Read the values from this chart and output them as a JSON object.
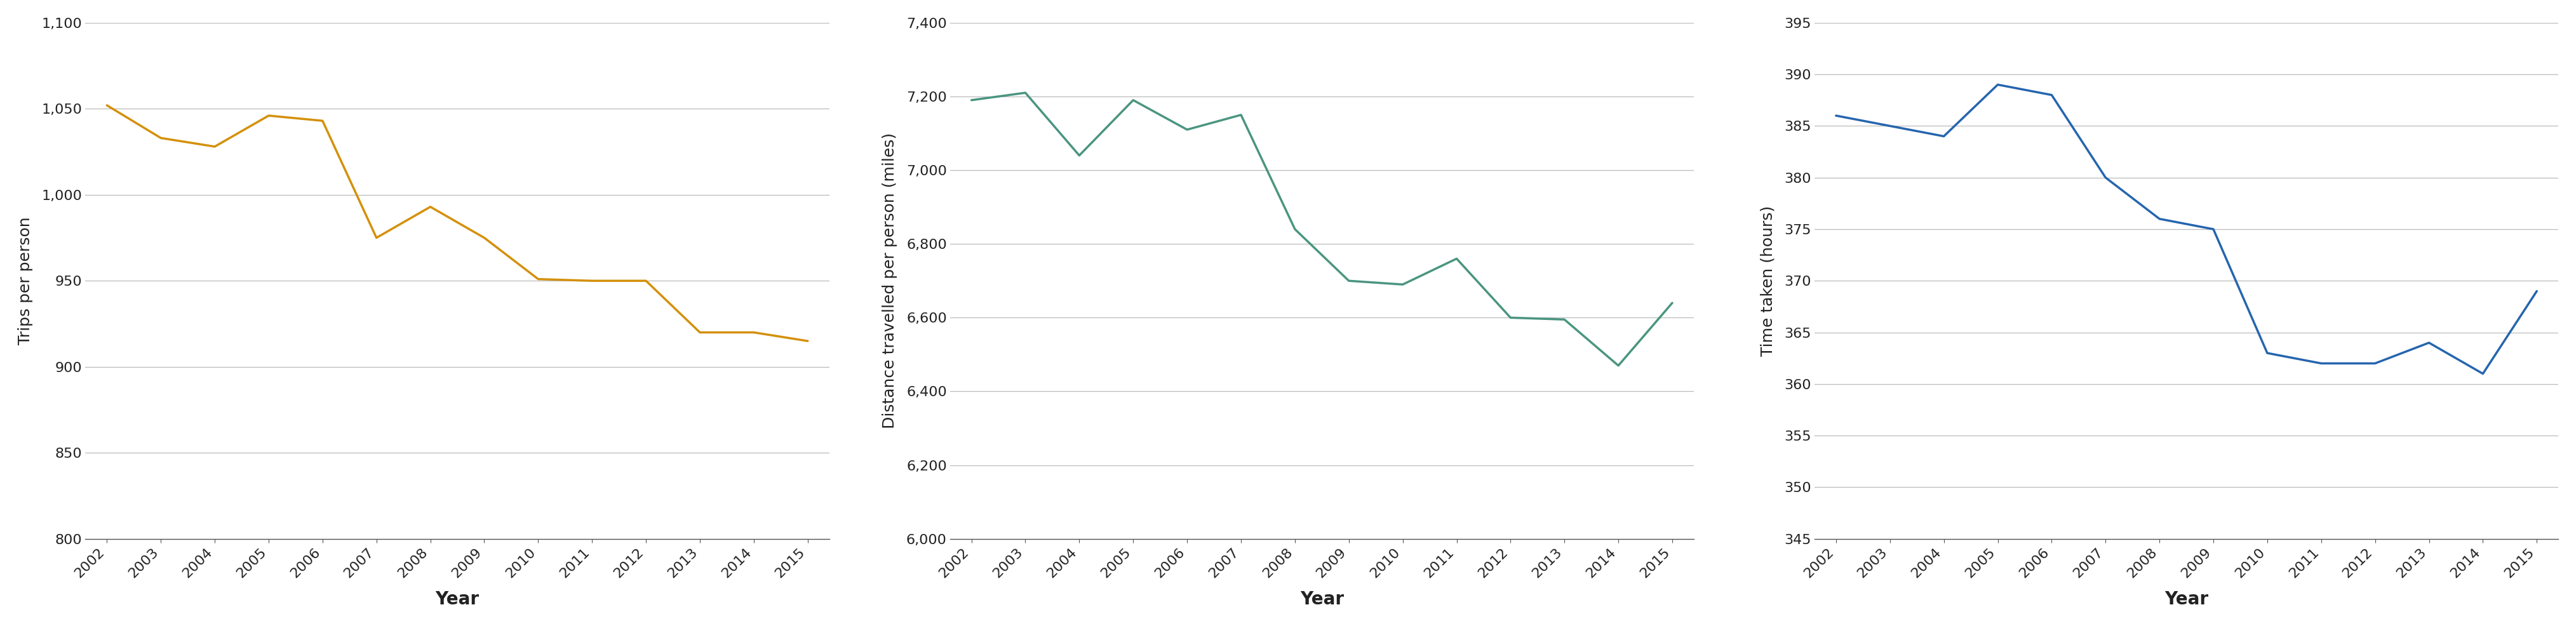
{
  "years": [
    2002,
    2003,
    2004,
    2005,
    2006,
    2007,
    2008,
    2009,
    2010,
    2011,
    2012,
    2013,
    2014,
    2015
  ],
  "trips": [
    1052,
    1033,
    1028,
    1046,
    1043,
    975,
    993,
    975,
    951,
    950,
    950,
    920,
    920,
    915
  ],
  "distance": [
    7190,
    7210,
    7040,
    7190,
    7110,
    7150,
    6840,
    6700,
    6690,
    6760,
    6600,
    6595,
    6470,
    6640
  ],
  "time": [
    386,
    385,
    384,
    389,
    388,
    380,
    376,
    375,
    363,
    362,
    362,
    364,
    361,
    369
  ],
  "trips_color": "#D4900A",
  "distance_color": "#4A9580",
  "time_color": "#2565AE",
  "trips_ylim": [
    800,
    1100
  ],
  "trips_yticks": [
    800,
    850,
    900,
    950,
    1000,
    1050,
    1100
  ],
  "trips_yticklabels": [
    "800",
    "850",
    "900",
    "950",
    "1,000",
    "1,050",
    "1,100"
  ],
  "distance_ylim": [
    6000,
    7400
  ],
  "distance_yticks": [
    6000,
    6200,
    6400,
    6600,
    6800,
    7000,
    7200,
    7400
  ],
  "distance_yticklabels": [
    "6,000",
    "6,200",
    "6,400",
    "6,600",
    "6,800",
    "7,000",
    "7,200",
    "7,400"
  ],
  "time_ylim": [
    345,
    395
  ],
  "time_yticks": [
    345,
    350,
    355,
    360,
    365,
    370,
    375,
    380,
    385,
    390,
    395
  ],
  "time_yticklabels": [
    "345",
    "350",
    "355",
    "360",
    "365",
    "370",
    "375",
    "380",
    "385",
    "390",
    "395"
  ],
  "ylabel1": "Trips per person",
  "ylabel2": "Distance travelled per person (miles)",
  "ylabel3": "Time taken (hours)",
  "xlabel": "Year",
  "linewidth": 2.5,
  "grid_color": "#BBBBBB",
  "tick_label_fontsize": 16,
  "axis_label_fontsize": 18,
  "xlabel_fontsize": 20,
  "background_color": "#FFFFFF",
  "spine_color": "#555555",
  "text_color": "#222222"
}
